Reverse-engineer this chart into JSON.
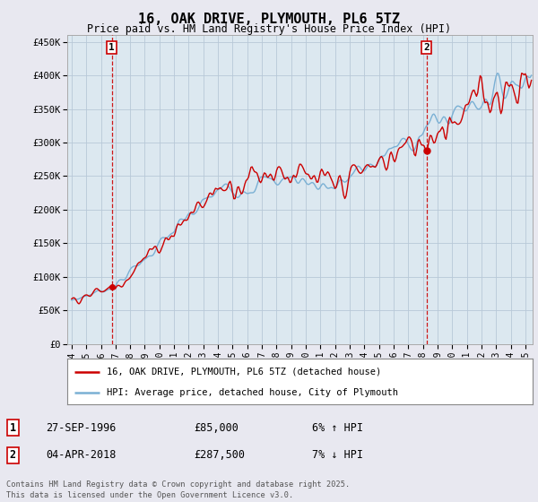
{
  "title": "16, OAK DRIVE, PLYMOUTH, PL6 5TZ",
  "subtitle": "Price paid vs. HM Land Registry's House Price Index (HPI)",
  "ylabel_ticks": [
    "£0",
    "£50K",
    "£100K",
    "£150K",
    "£200K",
    "£250K",
    "£300K",
    "£350K",
    "£400K",
    "£450K"
  ],
  "ytick_values": [
    0,
    50000,
    100000,
    150000,
    200000,
    250000,
    300000,
    350000,
    400000,
    450000
  ],
  "ylim": [
    0,
    460000
  ],
  "xlim_min": 1993.7,
  "xlim_max": 2025.5,
  "purchase1_x": 1996.75,
  "purchase1_y": 85000,
  "purchase2_x": 2018.25,
  "purchase2_y": 287500,
  "legend_line1": "16, OAK DRIVE, PLYMOUTH, PL6 5TZ (detached house)",
  "legend_line2": "HPI: Average price, detached house, City of Plymouth",
  "annotation1_date": "27-SEP-1996",
  "annotation1_price": "£85,000",
  "annotation1_hpi": "6% ↑ HPI",
  "annotation2_date": "04-APR-2018",
  "annotation2_price": "£287,500",
  "annotation2_hpi": "7% ↓ HPI",
  "footer": "Contains HM Land Registry data © Crown copyright and database right 2025.\nThis data is licensed under the Open Government Licence v3.0.",
  "line_color_price": "#cc0000",
  "line_color_hpi": "#7ab0d4",
  "bg_color": "#e8e8f0",
  "plot_bg_color": "#dce8f0",
  "grid_color": "#b8c8d8",
  "annotation_box_color": "#cc0000",
  "xtick_years": [
    1994,
    1995,
    1996,
    1997,
    1998,
    1999,
    2000,
    2001,
    2002,
    2003,
    2004,
    2005,
    2006,
    2007,
    2008,
    2009,
    2010,
    2011,
    2012,
    2013,
    2014,
    2015,
    2016,
    2017,
    2018,
    2019,
    2020,
    2021,
    2022,
    2023,
    2024,
    2025
  ]
}
